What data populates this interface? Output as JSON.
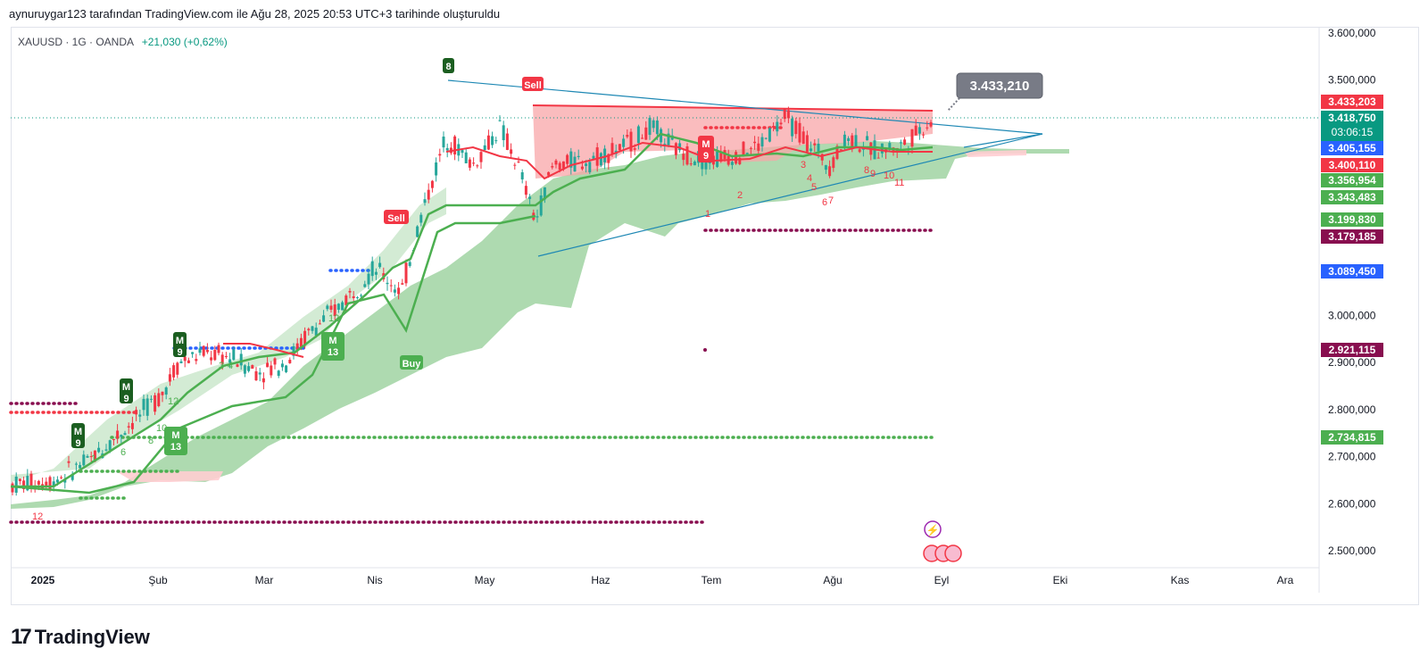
{
  "header": {
    "text": "aynuruygar123 tarafından TradingView.com ile Ağu 28, 2025 20:53 UTC+3 tarihinde oluşturuldu"
  },
  "legend": {
    "symbol": "XAUUSD · 1G · OANDA",
    "change": "+21,030 (+0,62%)"
  },
  "footer": {
    "logo_mark": "17",
    "brand": "TradingView"
  },
  "colors": {
    "green": "#4caf50",
    "red": "#f23645",
    "blue": "#2962ff",
    "maroon": "#880e4f",
    "teal": "#089981",
    "cloud_green": "#a5d6a7",
    "cloud_red": "#ffcdd2"
  },
  "chart_data": {
    "type": "candlestick",
    "symbol": "XAUUSD",
    "interval": "1G",
    "ylim": [
      2460000,
      3640000
    ],
    "y_ticks": [
      "2.500,000",
      "2.600,000",
      "2.700,000",
      "2.800,000",
      "2.900,000",
      "3.000,000",
      "3.500,000",
      "3.600,000"
    ],
    "x_ticks": [
      "2025",
      "Şub",
      "Mar",
      "Nis",
      "May",
      "Haz",
      "Tem",
      "Ağu",
      "Eyl",
      "Eki",
      "Kas",
      "Ara"
    ],
    "price_labels": [
      {
        "text": "3.433,203",
        "value": 3433203,
        "color": "#f23645"
      },
      {
        "text": "3.418,750",
        "sub": "03:06:15",
        "value": 3418750,
        "color": "#089981"
      },
      {
        "text": "3.405,155",
        "value": 3405155,
        "color": "#2962ff"
      },
      {
        "text": "3.400,110",
        "value": 3400110,
        "color": "#f23645"
      },
      {
        "text": "3.356,954",
        "value": 3356954,
        "color": "#4caf50"
      },
      {
        "text": "3.343,483",
        "value": 3343483,
        "color": "#4caf50"
      },
      {
        "text": "3.199,830",
        "value": 3199830,
        "color": "#4caf50"
      },
      {
        "text": "3.179,185",
        "value": 3179185,
        "color": "#880e4f"
      },
      {
        "text": "3.089,450",
        "value": 3089450,
        "color": "#2962ff"
      },
      {
        "text": "2.921,115",
        "value": 2921115,
        "color": "#880e4f"
      },
      {
        "text": "2.734,815",
        "value": 2734815,
        "color": "#4caf50"
      }
    ],
    "callout": "3.433,210",
    "signals": [
      {
        "text": "Sell",
        "color": "#f23645"
      },
      {
        "text": "Sell",
        "color": "#f23645"
      },
      {
        "text": "Buy",
        "color": "#4caf50"
      },
      {
        "text": "8",
        "color": "#1b5e20"
      },
      {
        "text": "M 13",
        "color": "#4caf50"
      },
      {
        "text": "M 13",
        "color": "#4caf50"
      },
      {
        "text": "M 9",
        "color": "#f23645"
      }
    ],
    "count_labels": [
      "1",
      "2",
      "3",
      "4",
      "5",
      "6",
      "7",
      "8",
      "9",
      "10",
      "11",
      "12"
    ]
  }
}
